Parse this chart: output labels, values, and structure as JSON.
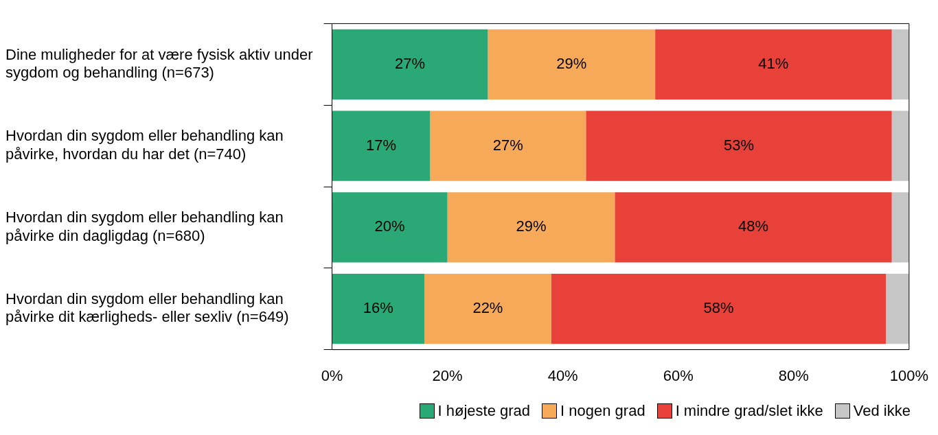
{
  "chart_data": {
    "type": "bar",
    "orientation": "horizontal",
    "stacked": true,
    "categories": [
      "Dine muligheder for at være fysisk aktiv under sygdom og behandling (n=673)",
      "Hvordan din sygdom eller behandling kan påvirke, hvordan du har det (n=740)",
      "Hvordan din sygdom eller behandling kan påvirke din dagligdag (n=680)",
      "Hvordan din sygdom eller behandling kan påvirke dit kærligheds- eller sexliv (n=649)"
    ],
    "series": [
      {
        "name": "I højeste grad",
        "color": "#2aa876",
        "values": [
          27,
          17,
          20,
          16
        ],
        "value_labels": [
          "27%",
          "17%",
          "20%",
          "16%"
        ]
      },
      {
        "name": "I nogen grad",
        "color": "#f5a959",
        "values": [
          29,
          27,
          29,
          22
        ],
        "value_labels": [
          "29%",
          "27%",
          "29%",
          "22%"
        ]
      },
      {
        "name": "I mindre grad/slet ikke",
        "color": "#e8413a",
        "values": [
          41,
          53,
          48,
          58
        ],
        "value_labels": [
          "41%",
          "53%",
          "48%",
          "58%"
        ]
      },
      {
        "name": "Ved ikke",
        "color": "#c6c6c6",
        "values": [
          3,
          3,
          3,
          4
        ]
      }
    ],
    "xlim": [
      0,
      100
    ],
    "xticks": [
      {
        "value": 0,
        "label": "0%"
      },
      {
        "value": 20,
        "label": "20%"
      },
      {
        "value": 40,
        "label": "40%"
      },
      {
        "value": 60,
        "label": "60%"
      },
      {
        "value": 80,
        "label": "80%"
      },
      {
        "value": 100,
        "label": "100%"
      }
    ],
    "grid": false,
    "legend": "bottom right"
  }
}
